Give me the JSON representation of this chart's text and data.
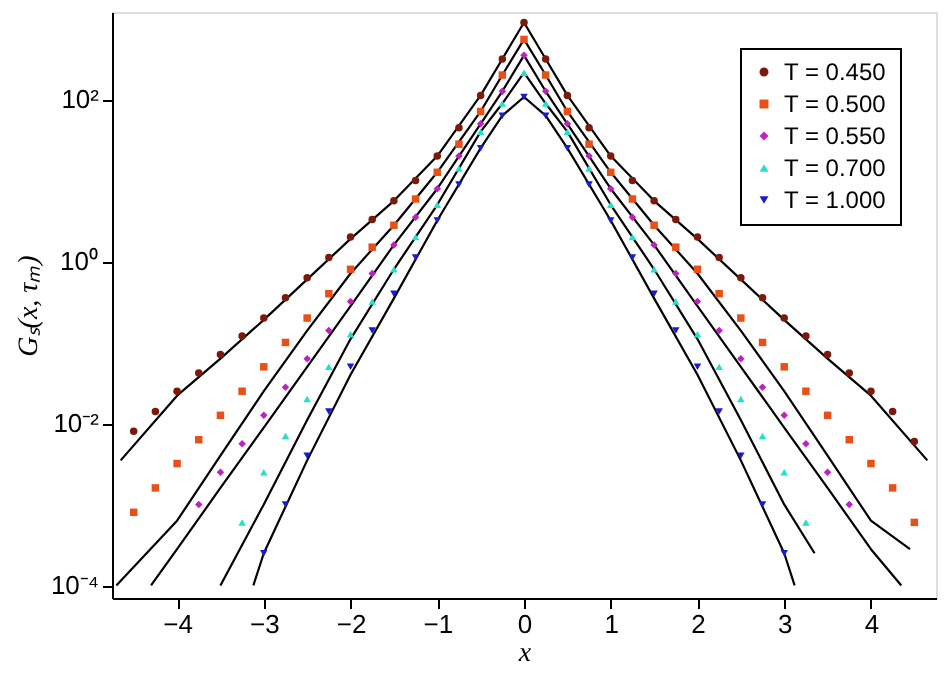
{
  "chart_data": {
    "type": "scatter",
    "xlabel": "x",
    "ylabel": "Gₛ(x, τₘ)",
    "log": "y",
    "grid": false,
    "legend": "top right",
    "xlim": [
      -4.75,
      4.75
    ],
    "ylim": [
      7e-05,
      1200
    ],
    "xticks": [
      {
        "value": -4,
        "label": "−4"
      },
      {
        "value": -3,
        "label": "−3"
      },
      {
        "value": -2,
        "label": "−2"
      },
      {
        "value": -1,
        "label": "−1"
      },
      0,
      1,
      2,
      3,
      4
    ],
    "yticks": [
      {
        "value": 0.0001,
        "label": "10⁻⁴"
      },
      {
        "value": 0.01,
        "label": "10⁻²"
      },
      {
        "value": 1,
        "label": "10⁰"
      },
      {
        "value": 100,
        "label": "10²"
      }
    ],
    "series": [
      {
        "name": "T = 0.450",
        "marker": "circle",
        "color": "#7a1a0a",
        "x": [
          -4.5,
          -4.25,
          -4,
          -3.75,
          -3.5,
          -3.25,
          -3,
          -2.75,
          -2.5,
          -2.25,
          -2,
          -1.75,
          -1.5,
          -1.25,
          -1,
          -0.75,
          -0.5,
          -0.25,
          0,
          0.25,
          0.5,
          0.75,
          1,
          1.25,
          1.5,
          1.75,
          2,
          2.25,
          2.5,
          2.75,
          3,
          3.25,
          3.5,
          3.75,
          4,
          4.25,
          4.5
        ],
        "values": [
          0.008,
          0.014,
          0.025,
          0.042,
          0.071,
          0.12,
          0.2,
          0.355,
          0.63,
          1.12,
          2.0,
          3.3,
          5.6,
          10,
          20,
          44.7,
          112,
          316,
          891,
          316,
          112,
          44.7,
          20,
          10,
          5.6,
          3.3,
          2.0,
          1.12,
          0.63,
          0.355,
          0.2,
          0.12,
          0.071,
          0.042,
          0.025,
          0.014,
          0.006
        ]
      },
      {
        "name": "T = 0.500",
        "marker": "square",
        "color": "#e8501a",
        "x": [
          -4.5,
          -4.25,
          -4,
          -3.75,
          -3.5,
          -3.25,
          -3,
          -2.75,
          -2.5,
          -2.25,
          -2,
          -1.75,
          -1.5,
          -1.25,
          -1,
          -0.75,
          -0.5,
          -0.25,
          0,
          0.25,
          0.5,
          0.75,
          1,
          1.25,
          1.5,
          1.75,
          2,
          2.25,
          2.5,
          2.75,
          3,
          3.25,
          3.5,
          3.75,
          4,
          4.25,
          4.5
        ],
        "values": [
          0.0008,
          0.0016,
          0.0032,
          0.0063,
          0.0126,
          0.025,
          0.05,
          0.1,
          0.2,
          0.4,
          0.8,
          1.5,
          2.8,
          5.9,
          12.6,
          28,
          71,
          200,
          550,
          200,
          71,
          28,
          12.6,
          5.9,
          2.8,
          1.5,
          0.8,
          0.4,
          0.2,
          0.1,
          0.05,
          0.025,
          0.0126,
          0.0063,
          0.0032,
          0.0016,
          0.0006
        ]
      },
      {
        "name": "T = 0.550",
        "marker": "diamond",
        "color": "#c020c0",
        "x": [
          -3.75,
          -3.5,
          -3.25,
          -3,
          -2.75,
          -2.5,
          -2.25,
          -2,
          -1.75,
          -1.5,
          -1.25,
          -1,
          -0.75,
          -0.5,
          -0.25,
          0,
          0.25,
          0.5,
          0.75,
          1,
          1.25,
          1.5,
          1.75,
          2,
          2.25,
          2.5,
          2.75,
          3,
          3.25,
          3.5,
          3.75
        ],
        "values": [
          0.001,
          0.0025,
          0.0056,
          0.0126,
          0.028,
          0.063,
          0.14,
          0.32,
          0.71,
          1.6,
          3.5,
          7.9,
          20,
          50,
          126,
          350,
          126,
          50,
          20,
          7.9,
          3.5,
          1.6,
          0.71,
          0.32,
          0.14,
          0.063,
          0.028,
          0.0126,
          0.0056,
          0.0025,
          0.001
        ]
      },
      {
        "name": "T = 0.700",
        "marker": "triangle",
        "color": "#20e0d0",
        "x": [
          -3.25,
          -3,
          -2.75,
          -2.5,
          -2.25,
          -2,
          -1.75,
          -1.5,
          -1.25,
          -1,
          -0.75,
          -0.5,
          -0.25,
          0,
          0.25,
          0.5,
          0.75,
          1,
          1.25,
          1.5,
          1.75,
          2,
          2.25,
          2.5,
          2.75,
          3,
          3.25
        ],
        "values": [
          0.0006,
          0.0025,
          0.007,
          0.02,
          0.05,
          0.126,
          0.32,
          0.8,
          2,
          5,
          14,
          40,
          89,
          214,
          89,
          40,
          14,
          5,
          2,
          0.8,
          0.32,
          0.126,
          0.05,
          0.02,
          0.007,
          0.0025,
          0.0006
        ]
      },
      {
        "name": "T = 1.000",
        "marker": "triangle-down",
        "color": "#1a1ad0",
        "x": [
          -3,
          -2.75,
          -2.5,
          -2.25,
          -2,
          -1.75,
          -1.5,
          -1.25,
          -1,
          -0.75,
          -0.5,
          -0.25,
          0,
          0.25,
          0.5,
          0.75,
          1,
          1.25,
          1.5,
          1.75,
          2,
          2.25,
          2.5,
          2.75,
          3
        ],
        "values": [
          0.00025,
          0.001,
          0.004,
          0.014,
          0.05,
          0.14,
          0.4,
          1.12,
          3.2,
          8.9,
          25,
          63,
          107,
          63,
          25,
          8.9,
          3.2,
          1.12,
          0.4,
          0.14,
          0.05,
          0.014,
          0.004,
          0.001,
          0.00025
        ]
      },
      {
        "type": "line",
        "line_style": "solid",
        "color": "#000000",
        "x": [
          -4.65,
          -4,
          -3.5,
          -3,
          -2.5,
          -2,
          -1.5,
          -1,
          -0.5,
          -0.25,
          0,
          0.25,
          0.5,
          1,
          1.5,
          2,
          2.5,
          3,
          3.5,
          4,
          4.65
        ],
        "values": [
          0.0035,
          0.022,
          0.063,
          0.19,
          0.6,
          1.9,
          5.6,
          20,
          112,
          316,
          891,
          316,
          112,
          20,
          5.6,
          1.9,
          0.6,
          0.19,
          0.063,
          0.022,
          0.0035
        ]
      },
      {
        "type": "line",
        "line_style": "solid",
        "color": "#000000",
        "x": [
          -4.7,
          -4,
          -3.5,
          -3,
          -2.5,
          -2,
          -1.5,
          -1,
          -0.5,
          -0.25,
          0,
          0.25,
          0.5,
          1,
          1.5,
          2,
          2.5,
          3,
          3.5,
          4,
          4.45
        ],
        "values": [
          0.0001,
          0.00063,
          0.004,
          0.025,
          0.14,
          0.71,
          2.8,
          12.6,
          71,
          200,
          550,
          200,
          71,
          12.6,
          2.8,
          0.71,
          0.14,
          0.025,
          0.004,
          0.00063,
          0.00028
        ]
      },
      {
        "type": "line",
        "line_style": "solid",
        "color": "#000000",
        "x": [
          -4.3,
          -4,
          -3.5,
          -3,
          -2.5,
          -2,
          -1.5,
          -1,
          -0.5,
          -0.25,
          0,
          0.25,
          0.5,
          1,
          1.5,
          2,
          2.5,
          3,
          3.5,
          4,
          4.35
        ],
        "values": [
          0.0001,
          0.00028,
          0.0016,
          0.0089,
          0.05,
          0.28,
          1.6,
          7.9,
          50,
          126,
          350,
          126,
          50,
          7.9,
          1.6,
          0.28,
          0.05,
          0.0089,
          0.0016,
          0.00028,
          0.0001
        ]
      },
      {
        "type": "line",
        "line_style": "solid",
        "color": "#000000",
        "x": [
          -3.5,
          -3,
          -2.5,
          -2,
          -1.5,
          -1,
          -0.5,
          -0.25,
          0,
          0.25,
          0.5,
          1,
          1.5,
          2,
          2.5,
          3,
          3.35
        ],
        "values": [
          0.0001,
          0.001,
          0.011,
          0.11,
          0.8,
          5,
          40,
          89,
          214,
          89,
          40,
          5,
          0.8,
          0.11,
          0.011,
          0.001,
          0.00025
        ]
      },
      {
        "type": "line",
        "line_style": "solid",
        "color": "#000000",
        "x": [
          -3.12,
          -3,
          -2.5,
          -2,
          -1.5,
          -1,
          -0.5,
          -0.25,
          0,
          0.25,
          0.5,
          1,
          1.5,
          2,
          2.5,
          3,
          3.12
        ],
        "values": [
          0.0001,
          0.00025,
          0.0035,
          0.04,
          0.35,
          3.2,
          25,
          63,
          107,
          63,
          25,
          3.2,
          0.35,
          0.04,
          0.0035,
          0.00025,
          0.0001
        ]
      }
    ]
  }
}
